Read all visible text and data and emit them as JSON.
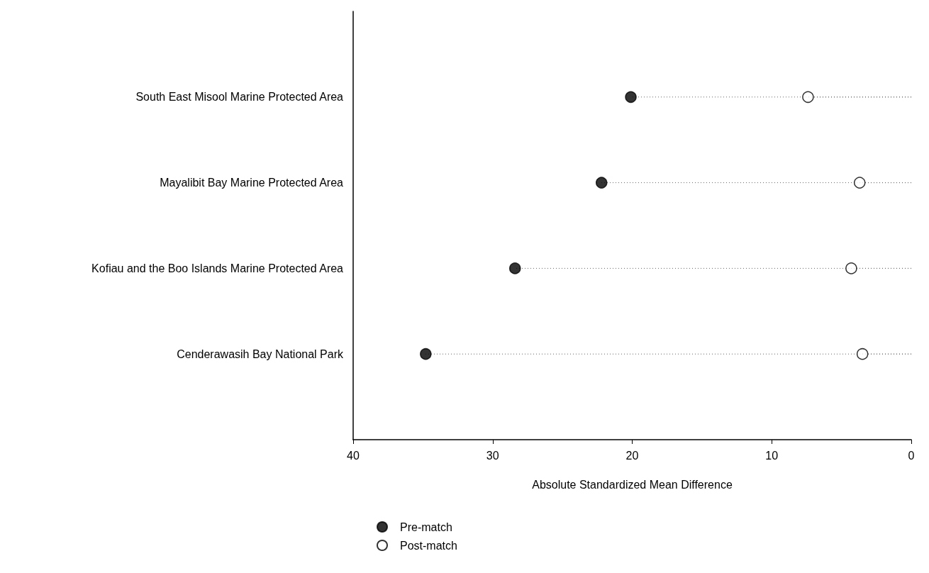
{
  "chart_data": {
    "type": "lollipop",
    "orientation": "horizontal",
    "xlabel": "Absolute Standardized Mean Difference",
    "categories": [
      "South East Misool Marine Protected Area",
      "Mayalibit Bay Marine Protected Area",
      "Kofiau and the Boo Islands Marine Protected Area",
      "Cenderawasih Bay National Park"
    ],
    "series": [
      {
        "name": "Pre-match",
        "color": "#000000",
        "values": [
          20.1,
          22.2,
          28.4,
          34.8
        ]
      },
      {
        "name": "Post-match",
        "color": "#ffffff",
        "values": [
          7.4,
          3.7,
          4.3,
          3.5
        ]
      }
    ],
    "xlim": [
      40,
      0
    ],
    "xticks": [
      40,
      30,
      20,
      10,
      0
    ],
    "marker": "circle",
    "line_style": "dotted",
    "grid": false,
    "legend": "bottom"
  }
}
